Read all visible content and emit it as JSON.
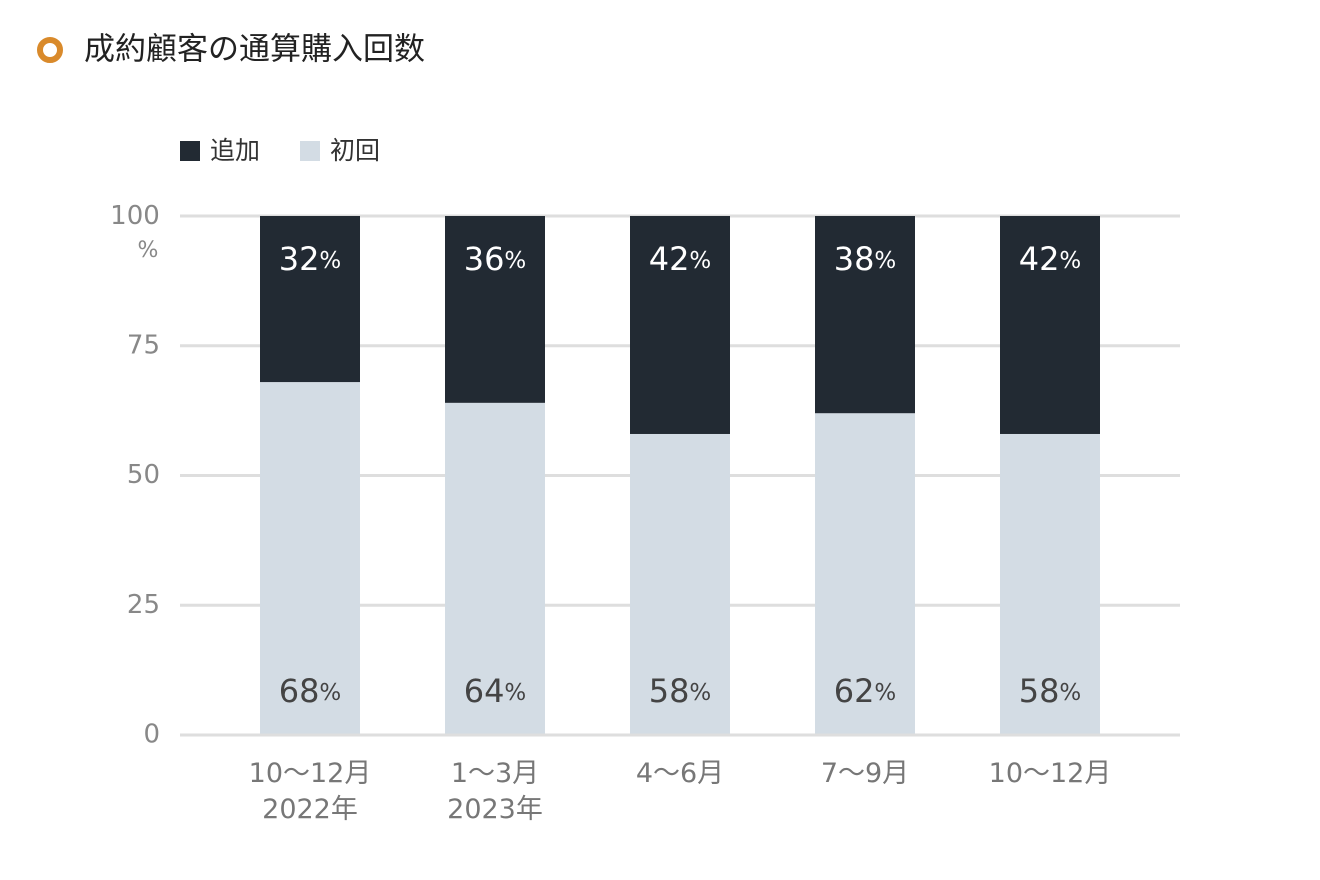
{
  "chart_data": {
    "type": "stacked-bar",
    "title": "成約顧客の通算購入回数",
    "categories": [
      "10〜12月\n2022年",
      "1〜3月\n2023年",
      "4〜6月",
      "7〜9月",
      "10〜12月"
    ],
    "series": [
      {
        "name": "追加",
        "color": "#222a33",
        "values": [
          32,
          36,
          42,
          38,
          42
        ],
        "value_labels": [
          "32%",
          "36%",
          "42%",
          "38%",
          "42%"
        ]
      },
      {
        "name": "初回",
        "color": "#d3dce4",
        "values": [
          68,
          64,
          58,
          62,
          58
        ],
        "value_labels": [
          "68%",
          "64%",
          "58%",
          "62%",
          "58%"
        ]
      }
    ],
    "ylim": [
      0,
      100
    ],
    "yticks": [
      0,
      25,
      50,
      75,
      {
        "value": 100,
        "label": "100%"
      }
    ],
    "grid": true
  }
}
